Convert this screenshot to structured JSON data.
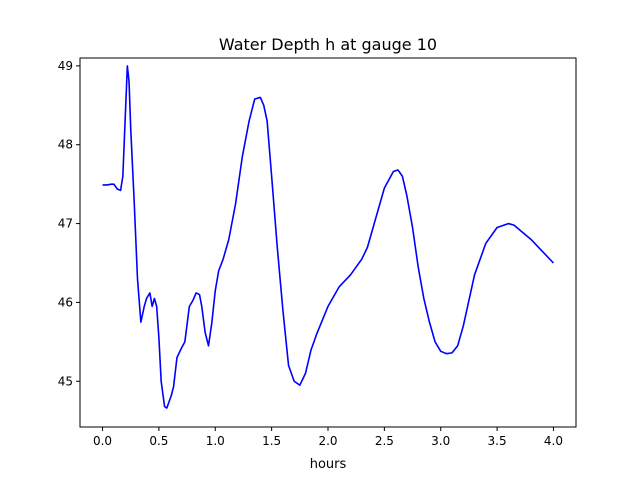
{
  "chart_data": {
    "type": "line",
    "title": "Water Depth h at gauge 10",
    "xlabel": "hours",
    "ylabel": "",
    "xlim": [
      -0.2,
      4.2
    ],
    "ylim": [
      44.42,
      49.1
    ],
    "xticks": [
      0.0,
      0.5,
      1.0,
      1.5,
      2.0,
      2.5,
      3.0,
      3.5,
      4.0
    ],
    "xtick_labels": [
      "0.0",
      "0.5",
      "1.0",
      "1.5",
      "2.0",
      "2.5",
      "3.0",
      "3.5",
      "4.0"
    ],
    "yticks": [
      45,
      46,
      47,
      48,
      49
    ],
    "ytick_labels": [
      "45",
      "46",
      "47",
      "48",
      "49"
    ],
    "grid": false,
    "series": [
      {
        "color": "#0000ff",
        "x": [
          0.0,
          0.04,
          0.08,
          0.1,
          0.13,
          0.16,
          0.18,
          0.2,
          0.22,
          0.235,
          0.25,
          0.28,
          0.31,
          0.34,
          0.37,
          0.39,
          0.42,
          0.44,
          0.46,
          0.48,
          0.5,
          0.52,
          0.55,
          0.57,
          0.59,
          0.61,
          0.63,
          0.66,
          0.7,
          0.73,
          0.77,
          0.8,
          0.83,
          0.86,
          0.88,
          0.91,
          0.94,
          0.97,
          1.0,
          1.03,
          1.07,
          1.12,
          1.18,
          1.24,
          1.3,
          1.35,
          1.4,
          1.43,
          1.46,
          1.5,
          1.55,
          1.6,
          1.65,
          1.7,
          1.75,
          1.8,
          1.85,
          1.9,
          2.0,
          2.1,
          2.2,
          2.25,
          2.3,
          2.35,
          2.4,
          2.5,
          2.58,
          2.62,
          2.66,
          2.7,
          2.75,
          2.8,
          2.85,
          2.9,
          2.95,
          3.0,
          3.05,
          3.1,
          3.15,
          3.2,
          3.3,
          3.4,
          3.5,
          3.6,
          3.65,
          3.7,
          3.8,
          3.9,
          4.0
        ],
        "y": [
          47.49,
          47.49,
          47.5,
          47.5,
          47.44,
          47.42,
          47.6,
          48.3,
          49.0,
          48.8,
          48.2,
          47.3,
          46.3,
          45.75,
          45.95,
          46.05,
          46.12,
          45.95,
          46.05,
          45.95,
          45.55,
          45.0,
          44.68,
          44.66,
          44.74,
          44.82,
          44.93,
          45.3,
          45.42,
          45.5,
          45.95,
          46.02,
          46.12,
          46.1,
          45.95,
          45.62,
          45.45,
          45.75,
          46.15,
          46.4,
          46.55,
          46.8,
          47.25,
          47.85,
          48.3,
          48.58,
          48.6,
          48.5,
          48.3,
          47.6,
          46.7,
          45.9,
          45.2,
          45.0,
          44.95,
          45.1,
          45.4,
          45.6,
          45.95,
          46.2,
          46.35,
          46.45,
          46.55,
          46.7,
          46.95,
          47.45,
          47.66,
          47.68,
          47.6,
          47.35,
          46.95,
          46.45,
          46.05,
          45.75,
          45.5,
          45.38,
          45.35,
          45.36,
          45.45,
          45.7,
          46.35,
          46.75,
          46.95,
          47.0,
          46.98,
          46.92,
          46.8,
          46.65,
          46.5
        ]
      }
    ]
  }
}
